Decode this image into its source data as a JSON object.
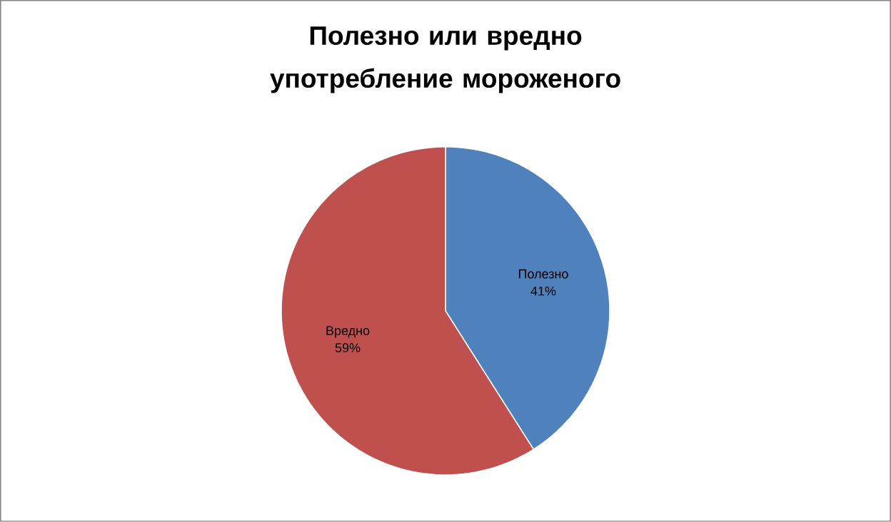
{
  "chart_data": {
    "type": "pie",
    "title": "Полезно или вредно употребление мороженого",
    "categories": [
      "Полезно",
      "Вредно"
    ],
    "values": [
      41,
      59
    ],
    "colors": [
      "#4f81bd",
      "#c0504d"
    ],
    "value_labels": [
      "41%",
      "59%"
    ]
  }
}
